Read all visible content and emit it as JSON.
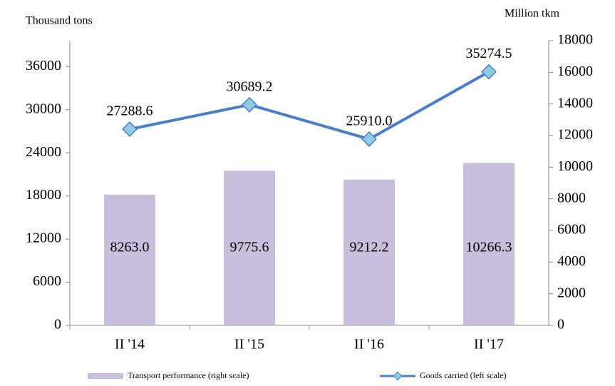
{
  "chart_data": {
    "type": "bar_line",
    "ylabel": "Thousand tons",
    "y2label": "Million tkm",
    "categories": [
      "II '14",
      "II '15",
      "II '16",
      "II '17"
    ],
    "series": [
      {
        "name": "Transport performance (right scale)",
        "type": "bar",
        "axis": "y2",
        "color": "#c8bfdc",
        "values": [
          8263.0,
          9775.6,
          9212.2,
          10266.3
        ],
        "value_labels": [
          "8263.0",
          "9775.6",
          "9212.2",
          "10266.3"
        ]
      },
      {
        "name": "Goods carried (left scale)",
        "type": "line",
        "axis": "y",
        "color": "#4a7ec9",
        "marker_color": "#8fcbe3",
        "values": [
          27288.6,
          30689.2,
          25910.0,
          35274.5
        ],
        "value_labels": [
          "27288.6",
          "30689.2",
          "25910.0",
          "35274.5"
        ]
      }
    ],
    "ylim": [
      0,
      39600
    ],
    "yticks": [
      0,
      6000,
      12000,
      18000,
      24000,
      30000,
      36000
    ],
    "y2lim": [
      0,
      18000
    ],
    "y2ticks": [
      0,
      2000,
      4000,
      6000,
      8000,
      10000,
      12000,
      14000,
      16000,
      18000
    ],
    "legend": "bottom"
  }
}
